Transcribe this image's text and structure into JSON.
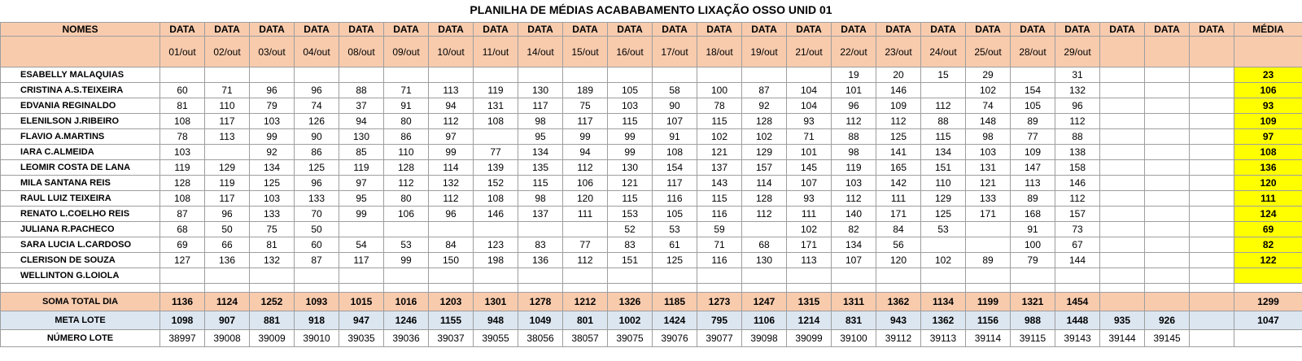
{
  "title": "PLANILHA DE MÉDIAS ACABABAMENTO LIXAÇÃO OSSO UNID 01",
  "header": {
    "names_label": "NOMES",
    "data_label": "DATA",
    "media_label": "MÉDIA",
    "dates": [
      "01/out",
      "02/out",
      "03/out",
      "04/out",
      "08/out",
      "09/out",
      "10/out",
      "11/out",
      "14/out",
      "15/out",
      "16/out",
      "17/out",
      "18/out",
      "19/out",
      "21/out",
      "22/out",
      "23/out",
      "24/out",
      "25/out",
      "28/out",
      "29/out",
      "",
      "",
      ""
    ]
  },
  "rows": [
    {
      "name": "ESABELLY MALAQUIAS",
      "values": [
        "",
        "",
        "",
        "",
        "",
        "",
        "",
        "",
        "",
        "",
        "",
        "",
        "",
        "",
        "",
        "19",
        "20",
        "15",
        "29",
        "",
        "31",
        "",
        "",
        ""
      ],
      "avg": "23"
    },
    {
      "name": "CRISTINA A.S.TEIXEIRA",
      "values": [
        "60",
        "71",
        "96",
        "96",
        "88",
        "71",
        "113",
        "119",
        "130",
        "189",
        "105",
        "58",
        "100",
        "87",
        "104",
        "101",
        "146",
        "",
        "102",
        "154",
        "132",
        "",
        "",
        ""
      ],
      "avg": "106"
    },
    {
      "name": "EDVANIA REGINALDO",
      "values": [
        "81",
        "110",
        "79",
        "74",
        "37",
        "91",
        "94",
        "131",
        "117",
        "75",
        "103",
        "90",
        "78",
        "92",
        "104",
        "96",
        "109",
        "112",
        "74",
        "105",
        "96",
        "",
        "",
        ""
      ],
      "avg": "93"
    },
    {
      "name": "ELENILSON J.RIBEIRO",
      "values": [
        "108",
        "117",
        "103",
        "126",
        "94",
        "80",
        "112",
        "108",
        "98",
        "117",
        "115",
        "107",
        "115",
        "128",
        "93",
        "112",
        "112",
        "88",
        "148",
        "89",
        "112",
        "",
        "",
        ""
      ],
      "avg": "109"
    },
    {
      "name": "FLAVIO A.MARTINS",
      "values": [
        "78",
        "113",
        "99",
        "90",
        "130",
        "86",
        "97",
        "",
        "95",
        "99",
        "99",
        "91",
        "102",
        "102",
        "71",
        "88",
        "125",
        "115",
        "98",
        "77",
        "88",
        "",
        "",
        ""
      ],
      "avg": "97"
    },
    {
      "name": "IARA C.ALMEIDA",
      "values": [
        "103",
        "",
        "92",
        "86",
        "85",
        "110",
        "99",
        "77",
        "134",
        "94",
        "99",
        "108",
        "121",
        "129",
        "101",
        "98",
        "141",
        "134",
        "103",
        "109",
        "138",
        "",
        "",
        ""
      ],
      "avg": "108"
    },
    {
      "name": "LEOMIR COSTA DE LANA",
      "values": [
        "119",
        "129",
        "134",
        "125",
        "119",
        "128",
        "114",
        "139",
        "135",
        "112",
        "130",
        "154",
        "137",
        "157",
        "145",
        "119",
        "165",
        "151",
        "131",
        "147",
        "158",
        "",
        "",
        ""
      ],
      "avg": "136"
    },
    {
      "name": "MILA SANTANA REIS",
      "values": [
        "128",
        "119",
        "125",
        "96",
        "97",
        "112",
        "132",
        "152",
        "115",
        "106",
        "121",
        "117",
        "143",
        "114",
        "107",
        "103",
        "142",
        "110",
        "121",
        "113",
        "146",
        "",
        "",
        ""
      ],
      "avg": "120"
    },
    {
      "name": "RAUL LUIZ TEIXEIRA",
      "values": [
        "108",
        "117",
        "103",
        "133",
        "95",
        "80",
        "112",
        "108",
        "98",
        "120",
        "115",
        "116",
        "115",
        "128",
        "93",
        "112",
        "111",
        "129",
        "133",
        "89",
        "112",
        "",
        "",
        ""
      ],
      "avg": "111"
    },
    {
      "name": "RENATO L.COELHO REIS",
      "values": [
        "87",
        "96",
        "133",
        "70",
        "99",
        "106",
        "96",
        "146",
        "137",
        "111",
        "153",
        "105",
        "116",
        "112",
        "111",
        "140",
        "171",
        "125",
        "171",
        "168",
        "157",
        "",
        "",
        ""
      ],
      "avg": "124"
    },
    {
      "name": "JULIANA R.PACHECO",
      "values": [
        "68",
        "50",
        "75",
        "50",
        "",
        "",
        "",
        "",
        "",
        "",
        "52",
        "53",
        "59",
        "",
        "102",
        "82",
        "84",
        "53",
        "",
        "91",
        "73",
        "",
        "",
        ""
      ],
      "avg": "69"
    },
    {
      "name": "SARA LUCIA L.CARDOSO",
      "values": [
        "69",
        "66",
        "81",
        "60",
        "54",
        "53",
        "84",
        "123",
        "83",
        "77",
        "83",
        "61",
        "71",
        "68",
        "171",
        "134",
        "56",
        "",
        "",
        "100",
        "67",
        "",
        "",
        ""
      ],
      "avg": "82"
    },
    {
      "name": "CLERISON DE SOUZA",
      "values": [
        "127",
        "136",
        "132",
        "87",
        "117",
        "99",
        "150",
        "198",
        "136",
        "112",
        "151",
        "125",
        "116",
        "130",
        "113",
        "107",
        "120",
        "102",
        "89",
        "79",
        "144",
        "",
        "",
        ""
      ],
      "avg": "122"
    },
    {
      "name": "WELLINTON G.LOIOLA",
      "values": [
        "",
        "",
        "",
        "",
        "",
        "",
        "",
        "",
        "",
        "",
        "",
        "",
        "",
        "",
        "",
        "",
        "",
        "",
        "",
        "",
        "",
        "",
        "",
        ""
      ],
      "avg": ""
    }
  ],
  "soma": {
    "label": "SOMA TOTAL DIA",
    "values": [
      "1136",
      "1124",
      "1252",
      "1093",
      "1015",
      "1016",
      "1203",
      "1301",
      "1278",
      "1212",
      "1326",
      "1185",
      "1273",
      "1247",
      "1315",
      "1311",
      "1362",
      "1134",
      "1199",
      "1321",
      "1454",
      "",
      "",
      ""
    ],
    "avg": "1299"
  },
  "meta": {
    "label": "META LOTE",
    "values": [
      "1098",
      "907",
      "881",
      "918",
      "947",
      "1246",
      "1155",
      "948",
      "1049",
      "801",
      "1002",
      "1424",
      "795",
      "1106",
      "1214",
      "831",
      "943",
      "1362",
      "1156",
      "988",
      "1448",
      "935",
      "926",
      ""
    ],
    "avg": "1047"
  },
  "lote": {
    "label": "NÚMERO LOTE",
    "values": [
      "38997",
      "39008",
      "39009",
      "39010",
      "39035",
      "39036",
      "39037",
      "39055",
      "38056",
      "38057",
      "39075",
      "39076",
      "39077",
      "39098",
      "39099",
      "39100",
      "39112",
      "39113",
      "39114",
      "39115",
      "39143",
      "39144",
      "39145",
      ""
    ],
    "avg": ""
  },
  "colors": {
    "header_bg": "#f8cbad",
    "avg_bg": "#ffff00",
    "meta_bg": "#dce6f1"
  }
}
